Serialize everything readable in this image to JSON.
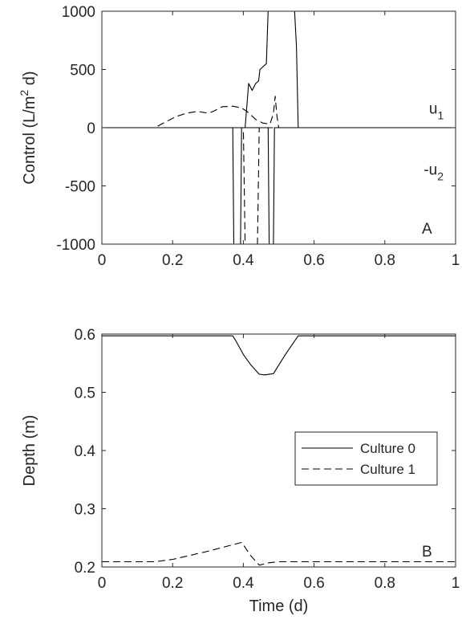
{
  "chart_data": [
    {
      "type": "line",
      "panel_label": "A",
      "xlabel": "",
      "ylabel_parts": [
        "Control (L/m",
        "2",
        " d)"
      ],
      "xlim": [
        0,
        1
      ],
      "ylim": [
        -1000,
        1000
      ],
      "xticks": [
        0,
        0.2,
        0.4,
        0.6,
        0.8,
        1
      ],
      "xtick_labels": [
        "0",
        "0.2",
        "0.4",
        "0.6",
        "0.8",
        "1"
      ],
      "yticks": [
        -1000,
        -500,
        0,
        500,
        1000
      ],
      "ytick_labels": [
        "-1000",
        "-500",
        "0",
        "500",
        "1000"
      ],
      "grid": false,
      "annotations": [
        {
          "text": "u",
          "sub": "1",
          "x": 0.925,
          "y": 170
        },
        {
          "text": "-u",
          "sub": "2",
          "x": 0.91,
          "y": -355
        }
      ],
      "series": [
        {
          "id": "u1",
          "style": "solid",
          "color": "#000000",
          "x": [
            0,
            0.405,
            0.415,
            0.425,
            0.435,
            0.443,
            0.447,
            0.465,
            0.47,
            0.478,
            0.545,
            0.55,
            0.555,
            1
          ],
          "y": [
            0,
            0,
            380,
            320,
            380,
            400,
            500,
            550,
            1000,
            1000,
            1000,
            700,
            0,
            0
          ]
        },
        {
          "id": "u2",
          "style": "solid",
          "color": "#000000",
          "x": [
            0,
            0.37,
            0.373,
            0.392,
            0.395,
            0.47,
            0.473,
            0.485,
            0.488,
            1
          ],
          "y": [
            0,
            0,
            -1000,
            -1000,
            0,
            0,
            -1000,
            -1000,
            0,
            0
          ]
        },
        {
          "id": "u1-culture1",
          "style": "dashed",
          "color": "#000000",
          "x": [
            0,
            0.15,
            0.18,
            0.21,
            0.24,
            0.27,
            0.3,
            0.315,
            0.34,
            0.37,
            0.395,
            0.41,
            0.425,
            0.435,
            0.455,
            0.475,
            0.485,
            0.49,
            0.495,
            0.5,
            1
          ],
          "y": [
            0,
            0,
            50,
            95,
            125,
            140,
            125,
            140,
            180,
            185,
            170,
            140,
            100,
            70,
            40,
            30,
            120,
            270,
            100,
            0,
            0
          ]
        },
        {
          "id": "u2-culture1",
          "style": "dashed",
          "color": "#000000",
          "x": [
            0,
            0.4,
            0.405,
            0.44,
            0.445,
            1
          ],
          "y": [
            0,
            0,
            -1000,
            -1000,
            0,
            0
          ]
        }
      ]
    },
    {
      "type": "line",
      "panel_label": "B",
      "xlabel": "Time (d)",
      "ylabel": "Depth (m)",
      "xlim": [
        0,
        1
      ],
      "ylim": [
        0.2,
        0.6
      ],
      "xticks": [
        0,
        0.2,
        0.4,
        0.6,
        0.8,
        1
      ],
      "xtick_labels": [
        "0",
        "0.2",
        "0.4",
        "0.6",
        "0.8",
        "1"
      ],
      "yticks": [
        0.2,
        0.3,
        0.4,
        0.5,
        0.6
      ],
      "ytick_labels": [
        "0.2",
        "0.3",
        "0.4",
        "0.5",
        "0.6"
      ],
      "grid": false,
      "legend_position": "center-right",
      "series": [
        {
          "name": "Culture 0",
          "style": "solid",
          "color": "#000000",
          "x": [
            0,
            0.37,
            0.38,
            0.4,
            0.42,
            0.445,
            0.46,
            0.485,
            0.52,
            0.555,
            1
          ],
          "y": [
            0.597,
            0.597,
            0.587,
            0.565,
            0.548,
            0.531,
            0.53,
            0.532,
            0.566,
            0.597,
            0.597
          ]
        },
        {
          "name": "Culture 1",
          "style": "dashed",
          "color": "#000000",
          "x": [
            0,
            0.15,
            0.2,
            0.25,
            0.3,
            0.35,
            0.395,
            0.4,
            0.42,
            0.445,
            0.47,
            0.5,
            1
          ],
          "y": [
            0.209,
            0.209,
            0.213,
            0.22,
            0.227,
            0.235,
            0.242,
            0.238,
            0.22,
            0.203,
            0.207,
            0.209,
            0.209
          ]
        }
      ]
    }
  ]
}
